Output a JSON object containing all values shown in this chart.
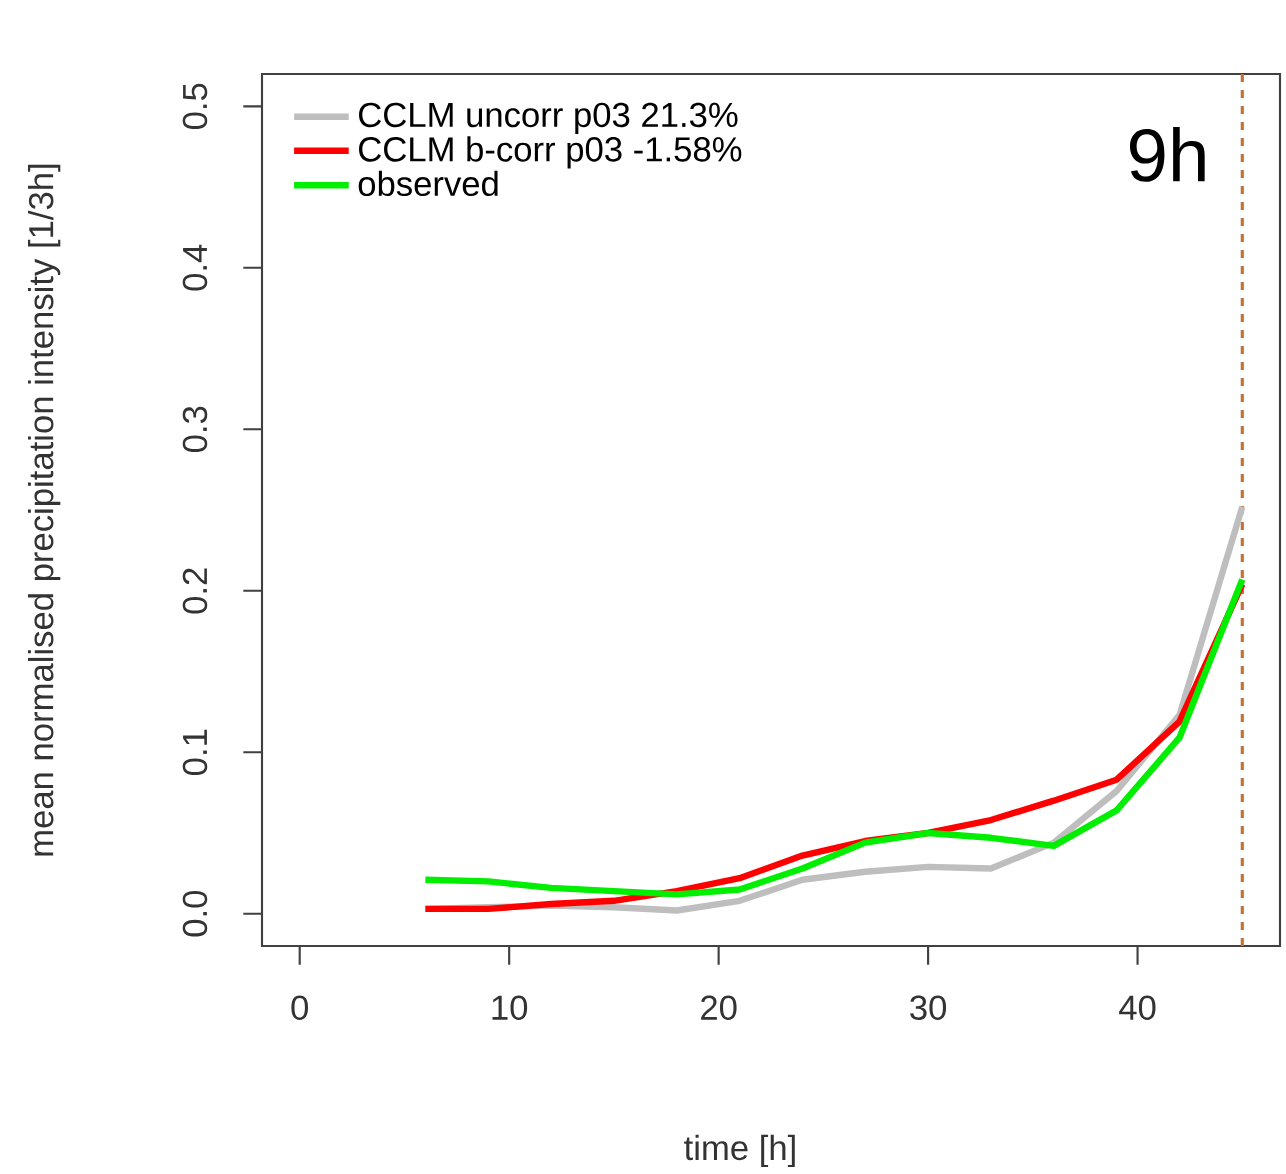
{
  "chart_data": {
    "type": "line",
    "xlabel": "time [h]",
    "ylabel": "mean normalised precipitation intensity [1/3h]",
    "x": [
      6,
      9,
      12,
      15,
      18,
      21,
      24,
      27,
      30,
      33,
      36,
      39,
      42,
      45
    ],
    "series": [
      {
        "name": "CCLM uncorr p03 21.3%",
        "color": "#bebebe",
        "values": [
          0.003,
          0.004,
          0.005,
          0.004,
          0.002,
          0.008,
          0.021,
          0.026,
          0.029,
          0.028,
          0.044,
          0.076,
          0.123,
          0.252
        ]
      },
      {
        "name": "CCLM b-corr p03 -1.58%",
        "color": "#ff0000",
        "values": [
          0.003,
          0.003,
          0.006,
          0.008,
          0.014,
          0.022,
          0.036,
          0.045,
          0.05,
          0.058,
          0.07,
          0.083,
          0.119,
          0.204
        ]
      },
      {
        "name": "observed",
        "color": "#00ee00",
        "values": [
          0.021,
          0.02,
          0.016,
          0.014,
          0.012,
          0.015,
          0.028,
          0.044,
          0.05,
          0.047,
          0.042,
          0.064,
          0.109,
          0.207
        ]
      }
    ],
    "xlim": [
      -1.8,
      46.8
    ],
    "ylim": [
      -0.02,
      0.52
    ],
    "xticks": [
      0,
      10,
      20,
      30,
      40
    ],
    "yticks": [
      {
        "value": 0,
        "label": "0.0"
      },
      0.1,
      0.2,
      0.3,
      0.4,
      0.5
    ],
    "ref_lines": [
      {
        "axis": "x",
        "value": 45,
        "color": "#c87137",
        "line_style": "dashed"
      }
    ],
    "annotations": [
      "9h"
    ],
    "legend": "top left",
    "grid": false,
    "line_style": "solid",
    "marker": "none"
  }
}
